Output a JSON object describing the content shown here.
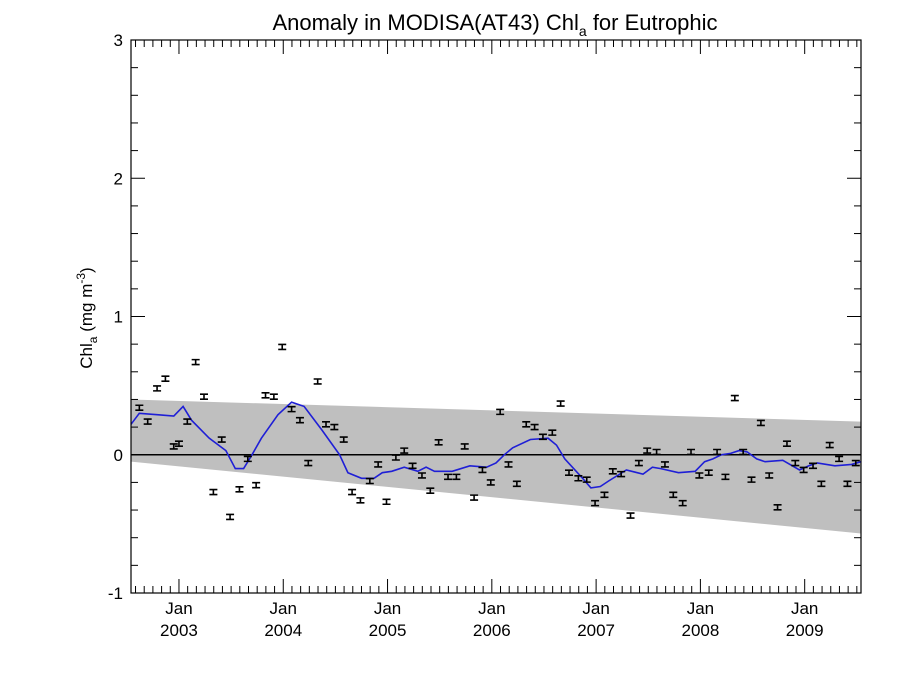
{
  "chart_data": {
    "type": "scatter",
    "title": "Anomaly in MODISA(AT43) Chl",
    "title_subscript": "a",
    "title_suffix": " for Eutrophic",
    "ylabel": "Chl",
    "ylabel_subscript": "a",
    "ylabel_units": " (mg m",
    "ylabel_superscript": "-3",
    "ylabel_close": ")",
    "ylim": [
      -1,
      3
    ],
    "yticks": [
      -1,
      0,
      1,
      2,
      3
    ],
    "xlim": [
      2002.54,
      2009.54
    ],
    "xticks": [
      {
        "x": 2003.0,
        "top": "Jan",
        "bottom": "2003"
      },
      {
        "x": 2004.0,
        "top": "Jan",
        "bottom": "2004"
      },
      {
        "x": 2005.0,
        "top": "Jan",
        "bottom": "2005"
      },
      {
        "x": 2006.0,
        "top": "Jan",
        "bottom": "2006"
      },
      {
        "x": 2007.0,
        "top": "Jan",
        "bottom": "2007"
      },
      {
        "x": 2008.0,
        "top": "Jan",
        "bottom": "2008"
      },
      {
        "x": 2009.0,
        "top": "Jan",
        "bottom": "2009"
      }
    ],
    "colors": {
      "line": "#1f1fd6",
      "band": "#bfbfbf",
      "points": "#000000",
      "zero": "#000000"
    },
    "envelope": {
      "upper": [
        [
          2002.54,
          0.4
        ],
        [
          2009.54,
          0.24
        ]
      ],
      "lower": [
        [
          2002.54,
          -0.05
        ],
        [
          2009.54,
          -0.57
        ]
      ]
    },
    "smoothed_line": {
      "x": [
        2002.54,
        2002.62,
        2002.79,
        2002.95,
        2003.04,
        2003.12,
        2003.29,
        2003.45,
        2003.54,
        2003.62,
        2003.7,
        2003.79,
        2003.95,
        2004.08,
        2004.2,
        2004.37,
        2004.54,
        2004.62,
        2004.75,
        2004.87,
        2004.95,
        2005.04,
        2005.16,
        2005.29,
        2005.37,
        2005.45,
        2005.62,
        2005.79,
        2005.95,
        2006.04,
        2006.12,
        2006.2,
        2006.37,
        2006.54,
        2006.62,
        2006.7,
        2006.87,
        2006.95,
        2007.04,
        2007.12,
        2007.29,
        2007.45,
        2007.54,
        2007.62,
        2007.79,
        2007.95,
        2008.04,
        2008.12,
        2008.2,
        2008.29,
        2008.37,
        2008.45,
        2008.54,
        2008.62,
        2008.79,
        2008.95,
        2009.04,
        2009.12,
        2009.29,
        2009.45,
        2009.54
      ],
      "y": [
        0.22,
        0.3,
        0.29,
        0.28,
        0.35,
        0.25,
        0.12,
        0.03,
        -0.1,
        -0.1,
        0.0,
        0.12,
        0.29,
        0.38,
        0.35,
        0.18,
        0.0,
        -0.13,
        -0.17,
        -0.17,
        -0.13,
        -0.12,
        -0.09,
        -0.12,
        -0.09,
        -0.12,
        -0.12,
        -0.08,
        -0.09,
        -0.06,
        0.0,
        0.05,
        0.11,
        0.12,
        0.07,
        -0.03,
        -0.17,
        -0.24,
        -0.23,
        -0.19,
        -0.11,
        -0.14,
        -0.09,
        -0.1,
        -0.13,
        -0.12,
        -0.05,
        -0.03,
        0.0,
        0.01,
        0.03,
        0.02,
        -0.03,
        -0.05,
        -0.04,
        -0.11,
        -0.08,
        -0.06,
        -0.08,
        -0.07,
        -0.05
      ]
    },
    "points": {
      "x": [
        2002.62,
        2002.7,
        2002.79,
        2002.87,
        2002.95,
        2003.0,
        2003.08,
        2003.16,
        2003.24,
        2003.33,
        2003.41,
        2003.49,
        2003.58,
        2003.66,
        2003.74,
        2003.83,
        2003.91,
        2003.99,
        2004.08,
        2004.16,
        2004.24,
        2004.33,
        2004.41,
        2004.49,
        2004.58,
        2004.66,
        2004.74,
        2004.83,
        2004.91,
        2004.99,
        2005.08,
        2005.16,
        2005.24,
        2005.33,
        2005.41,
        2005.49,
        2005.58,
        2005.66,
        2005.74,
        2005.83,
        2005.91,
        2005.99,
        2006.08,
        2006.16,
        2006.24,
        2006.33,
        2006.41,
        2006.49,
        2006.58,
        2006.66,
        2006.74,
        2006.83,
        2006.91,
        2006.99,
        2007.08,
        2007.16,
        2007.24,
        2007.33,
        2007.41,
        2007.49,
        2007.58,
        2007.66,
        2007.74,
        2007.83,
        2007.91,
        2007.99,
        2008.08,
        2008.16,
        2008.24,
        2008.33,
        2008.41,
        2008.49,
        2008.58,
        2008.66,
        2008.74,
        2008.83,
        2008.91,
        2008.99,
        2009.08,
        2009.16,
        2009.24,
        2009.33,
        2009.41,
        2009.49
      ],
      "y": [
        0.34,
        0.24,
        0.48,
        0.55,
        0.06,
        0.08,
        0.24,
        0.67,
        0.42,
        -0.27,
        0.11,
        -0.45,
        -0.25,
        -0.03,
        -0.22,
        0.43,
        0.42,
        0.78,
        0.33,
        0.25,
        -0.06,
        0.53,
        0.22,
        0.2,
        0.11,
        -0.27,
        -0.33,
        -0.19,
        -0.07,
        -0.34,
        -0.02,
        0.03,
        -0.08,
        -0.15,
        -0.26,
        0.09,
        -0.16,
        -0.16,
        0.06,
        -0.31,
        -0.11,
        -0.2,
        0.31,
        -0.07,
        -0.21,
        0.22,
        0.2,
        0.13,
        0.16,
        0.37,
        -0.13,
        -0.17,
        -0.18,
        -0.35,
        -0.29,
        -0.12,
        -0.14,
        -0.44,
        -0.06,
        0.03,
        0.02,
        -0.07,
        -0.29,
        -0.35,
        0.02,
        -0.15,
        -0.13,
        0.02,
        -0.16,
        0.41,
        0.02,
        -0.18,
        0.23,
        -0.15,
        -0.38,
        0.08,
        -0.06,
        -0.11,
        -0.08,
        -0.21,
        0.07,
        -0.03,
        -0.21,
        -0.06
      ],
      "error": 0.018
    }
  }
}
